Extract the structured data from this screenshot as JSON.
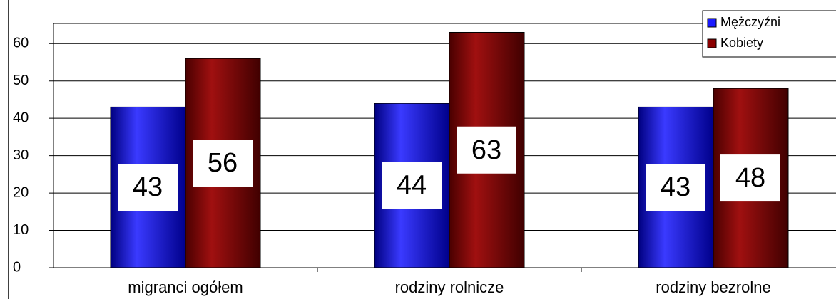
{
  "chart_data": {
    "type": "bar",
    "categories": [
      "migranci ogółem",
      "rodziny rolnicze",
      "rodziny bezrolne"
    ],
    "series": [
      {
        "name": "Mężczyźni",
        "color": "#1a1aff",
        "values": [
          43,
          44,
          43
        ]
      },
      {
        "name": "Kobiety",
        "color": "#8b0000",
        "values": [
          56,
          63,
          48
        ]
      }
    ],
    "ylim": [
      0,
      65
    ],
    "yticks": [
      0,
      10,
      20,
      30,
      40,
      50,
      60
    ],
    "grid": true,
    "legend": "top-right"
  }
}
